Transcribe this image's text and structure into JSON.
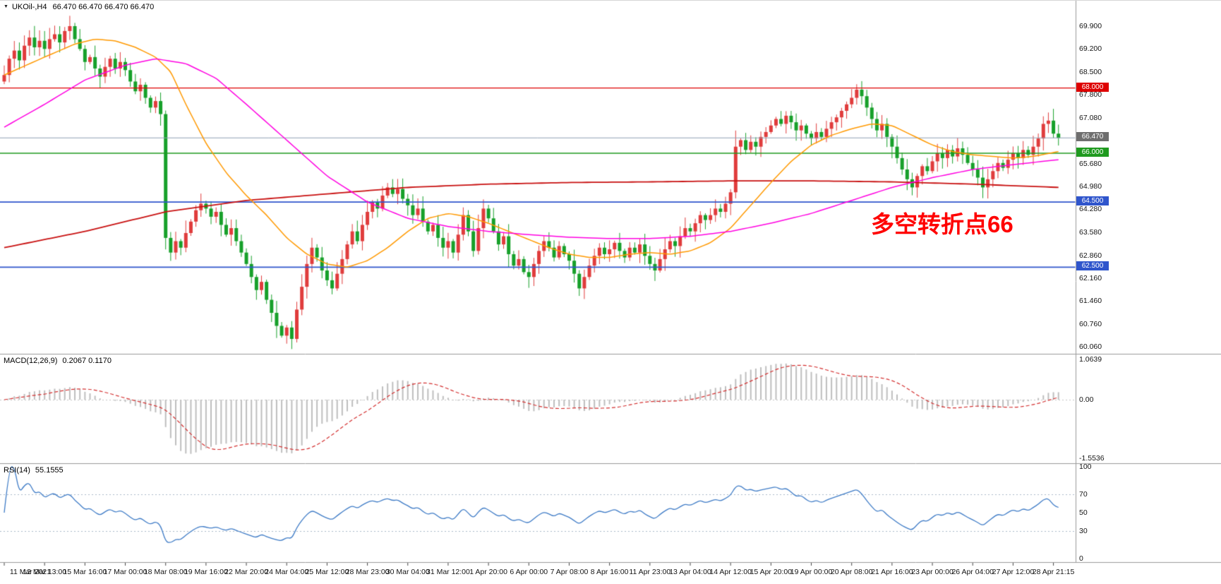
{
  "header": {
    "symbol": "UKOil-,H4",
    "ohlc": "66.470 66.470 66.470 66.470"
  },
  "annotation": {
    "text": "多空转折点66",
    "color": "#FF0000"
  },
  "chart_data": {
    "type": "candlestick",
    "symbol": "UKOil-",
    "timeframe": "H4",
    "ohlc_display": [
      "66.470",
      "66.470",
      "66.470",
      "66.470"
    ],
    "current_price": 66.47,
    "up_color": "#E03C3C",
    "down_color": "#17A02A",
    "current_price_line_color": "#8FA0B4",
    "price_axis": {
      "ticks": [
        "69.900",
        "69.200",
        "68.500",
        "67.800",
        "67.080",
        "65.680",
        "64.980",
        "64.280",
        "63.580",
        "62.860",
        "62.160",
        "61.460",
        "60.760",
        "60.060"
      ],
      "tagged": [
        {
          "text": "68.000",
          "price": 68.0,
          "bg": "#DE0000"
        },
        {
          "text": "66.470",
          "price": 66.47,
          "bg": "#6E6E6E"
        },
        {
          "text": "66.000",
          "price": 66.0,
          "bg": "#1F9A1F"
        },
        {
          "text": "64.500",
          "price": 64.5,
          "bg": "#2F55CC"
        },
        {
          "text": "62.500",
          "price": 62.5,
          "bg": "#2F55CC"
        }
      ]
    },
    "hlines": [
      {
        "price": 68.0,
        "color": "#DE0000",
        "width": 1.4
      },
      {
        "price": 66.0,
        "color": "#1F9A1F",
        "width": 1.6
      },
      {
        "price": 64.5,
        "color": "#2F55CC",
        "width": 1.6
      },
      {
        "price": 62.5,
        "color": "#2F55CC",
        "width": 1.6
      }
    ],
    "time_labels": [
      "11 Mar 2021",
      "12 Mar 13:00",
      "15 Mar 16:00",
      "17 Mar 00:00",
      "18 Mar 08:00",
      "19 Mar 16:00",
      "22 Mar 20:00",
      "24 Mar 04:00",
      "25 Mar 12:00",
      "28 Mar 23:00",
      "30 Mar 04:00",
      "31 Mar 12:00",
      "1 Apr 20:00",
      "6 Apr 00:00",
      "7 Apr 08:00",
      "8 Apr 16:00",
      "11 Apr 23:00",
      "13 Apr 04:00",
      "14 Apr 12:00",
      "15 Apr 20:00",
      "19 Apr 00:00",
      "20 Apr 08:00",
      "21 Apr 16:00",
      "23 Apr 00:00",
      "26 Apr 04:00",
      "27 Apr 12:00",
      "28 Apr 21:15"
    ],
    "candles_per_label": 8,
    "closes": [
      68.4,
      68.9,
      69.15,
      68.85,
      69.3,
      69.55,
      69.25,
      69.45,
      69.2,
      69.5,
      69.65,
      69.4,
      69.75,
      69.9,
      69.5,
      69.2,
      68.8,
      68.95,
      68.6,
      68.35,
      68.65,
      68.9,
      68.6,
      68.8,
      68.55,
      68.2,
      67.9,
      68.1,
      67.7,
      67.4,
      67.6,
      67.2,
      63.4,
      62.95,
      63.3,
      63.1,
      63.55,
      63.9,
      64.25,
      64.45,
      64.3,
      64.05,
      64.2,
      63.8,
      63.5,
      63.7,
      63.3,
      62.95,
      62.6,
      62.2,
      61.8,
      62.05,
      61.5,
      61.1,
      60.7,
      60.4,
      60.65,
      60.3,
      61.2,
      61.9,
      62.6,
      63.1,
      62.8,
      62.4,
      62.1,
      61.85,
      62.3,
      62.75,
      63.2,
      63.6,
      63.3,
      63.8,
      64.2,
      64.5,
      64.3,
      64.7,
      64.95,
      64.75,
      64.9,
      64.6,
      64.4,
      64.1,
      64.3,
      63.9,
      63.6,
      63.8,
      63.4,
      63.1,
      63.3,
      62.95,
      63.5,
      64.1,
      63.6,
      63.0,
      63.7,
      64.3,
      64.0,
      63.6,
      63.2,
      63.45,
      62.9,
      62.55,
      62.75,
      62.35,
      62.2,
      62.6,
      63.0,
      63.3,
      63.1,
      62.8,
      63.15,
      62.9,
      62.7,
      62.3,
      61.85,
      62.2,
      62.55,
      62.85,
      63.1,
      62.9,
      63.05,
      63.25,
      63.0,
      62.8,
      63.1,
      62.95,
      63.2,
      62.85,
      62.6,
      62.4,
      62.75,
      63.05,
      63.3,
      63.15,
      63.45,
      63.7,
      63.6,
      63.85,
      64.1,
      63.95,
      64.1,
      64.3,
      64.2,
      64.45,
      64.8,
      66.2,
      66.4,
      66.1,
      66.35,
      66.2,
      66.5,
      66.65,
      66.85,
      67.05,
      66.9,
      67.15,
      66.95,
      66.7,
      66.85,
      66.6,
      66.45,
      66.65,
      66.5,
      66.75,
      66.95,
      67.1,
      67.3,
      67.5,
      67.7,
      67.95,
      67.75,
      67.4,
      67.05,
      66.7,
      66.9,
      66.5,
      66.2,
      65.85,
      65.5,
      65.2,
      64.95,
      65.3,
      65.6,
      65.45,
      65.75,
      66.0,
      65.85,
      66.1,
      65.9,
      66.15,
      65.95,
      65.7,
      65.5,
      65.25,
      64.95,
      65.2,
      65.45,
      65.7,
      65.55,
      65.8,
      66.0,
      65.85,
      66.1,
      65.95,
      66.2,
      66.45,
      66.9,
      67.0,
      66.6,
      66.47
    ],
    "moving_averages": [
      {
        "name": "ma-fast",
        "color": "#FF9900",
        "width": 1.5,
        "anchors": [
          [
            0,
            68.4
          ],
          [
            8,
            68.95
          ],
          [
            14,
            69.35
          ],
          [
            18,
            69.5
          ],
          [
            22,
            69.45
          ],
          [
            26,
            69.25
          ],
          [
            30,
            68.95
          ],
          [
            33,
            68.5
          ],
          [
            36,
            67.5
          ],
          [
            40,
            66.3
          ],
          [
            44,
            65.4
          ],
          [
            48,
            64.7
          ],
          [
            52,
            64.1
          ],
          [
            56,
            63.4
          ],
          [
            60,
            62.9
          ],
          [
            64,
            62.6
          ],
          [
            68,
            62.5
          ],
          [
            72,
            62.7
          ],
          [
            76,
            63.1
          ],
          [
            80,
            63.6
          ],
          [
            84,
            64.0
          ],
          [
            88,
            64.15
          ],
          [
            92,
            64.05
          ],
          [
            96,
            63.85
          ],
          [
            100,
            63.6
          ],
          [
            104,
            63.35
          ],
          [
            108,
            63.1
          ],
          [
            112,
            62.9
          ],
          [
            116,
            62.8
          ],
          [
            120,
            62.8
          ],
          [
            124,
            62.9
          ],
          [
            128,
            62.95
          ],
          [
            132,
            62.9
          ],
          [
            136,
            63.0
          ],
          [
            140,
            63.25
          ],
          [
            144,
            63.7
          ],
          [
            148,
            64.4
          ],
          [
            152,
            65.1
          ],
          [
            156,
            65.75
          ],
          [
            160,
            66.25
          ],
          [
            164,
            66.55
          ],
          [
            168,
            66.75
          ],
          [
            172,
            66.9
          ],
          [
            176,
            66.85
          ],
          [
            180,
            66.55
          ],
          [
            184,
            66.25
          ],
          [
            188,
            66.05
          ],
          [
            192,
            65.95
          ],
          [
            196,
            65.9
          ],
          [
            200,
            65.85
          ],
          [
            204,
            65.9
          ],
          [
            209,
            66.05
          ]
        ]
      },
      {
        "name": "ma-mid",
        "color": "#FF00E1",
        "width": 1.5,
        "anchors": [
          [
            0,
            66.8
          ],
          [
            8,
            67.5
          ],
          [
            16,
            68.25
          ],
          [
            24,
            68.7
          ],
          [
            30,
            68.9
          ],
          [
            36,
            68.75
          ],
          [
            42,
            68.3
          ],
          [
            48,
            67.5
          ],
          [
            56,
            66.4
          ],
          [
            64,
            65.3
          ],
          [
            72,
            64.5
          ],
          [
            80,
            64.0
          ],
          [
            88,
            63.75
          ],
          [
            96,
            63.6
          ],
          [
            104,
            63.5
          ],
          [
            112,
            63.42
          ],
          [
            120,
            63.38
          ],
          [
            128,
            63.38
          ],
          [
            136,
            63.45
          ],
          [
            144,
            63.6
          ],
          [
            152,
            63.85
          ],
          [
            160,
            64.15
          ],
          [
            168,
            64.55
          ],
          [
            176,
            64.95
          ],
          [
            184,
            65.25
          ],
          [
            192,
            65.5
          ],
          [
            200,
            65.65
          ],
          [
            209,
            65.8
          ]
        ]
      },
      {
        "name": "ma-slow",
        "color": "#C81010",
        "width": 1.8,
        "anchors": [
          [
            0,
            63.1
          ],
          [
            16,
            63.6
          ],
          [
            32,
            64.2
          ],
          [
            48,
            64.55
          ],
          [
            64,
            64.75
          ],
          [
            80,
            64.95
          ],
          [
            96,
            65.05
          ],
          [
            112,
            65.1
          ],
          [
            128,
            65.12
          ],
          [
            144,
            65.15
          ],
          [
            160,
            65.15
          ],
          [
            176,
            65.12
          ],
          [
            192,
            65.05
          ],
          [
            209,
            64.95
          ]
        ]
      }
    ],
    "macd": {
      "label": "MACD(12,26,9)",
      "values_text": "0.2067 0.1170",
      "params": [
        12,
        26,
        9
      ],
      "axis_labels": [
        "1.0639",
        "0.00",
        "-1.5536"
      ],
      "range": [
        -1.5536,
        1.0639
      ],
      "histogram_color": "#BEBEBE",
      "signal_color": "#D32F2F"
    },
    "rsi": {
      "label": "RSI(14)",
      "value_text": "55.1555",
      "period": 14,
      "axis_labels": [
        "100",
        "70",
        "50",
        "30",
        "0"
      ],
      "level_lines": [
        70,
        30
      ],
      "line_color": "#3E7BC6",
      "level_color": "#A8B8C8"
    }
  }
}
